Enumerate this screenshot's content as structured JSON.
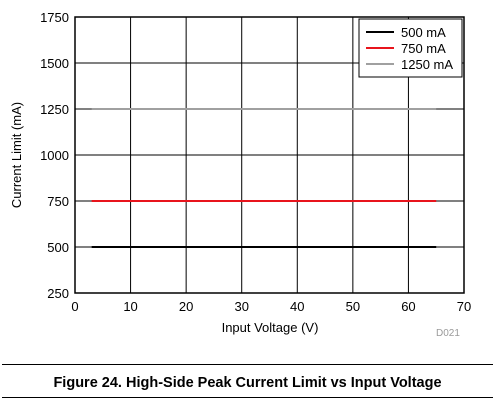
{
  "chart_data": {
    "type": "line",
    "title": "",
    "xlabel": "Input Voltage (V)",
    "ylabel": "Current Limit (mA)",
    "xlim": [
      0,
      70
    ],
    "ylim": [
      250,
      1750
    ],
    "xticks": [
      0,
      10,
      20,
      30,
      40,
      50,
      60,
      70
    ],
    "yticks": [
      250,
      500,
      750,
      1000,
      1250,
      1500,
      1750
    ],
    "grid": true,
    "legend_position": "top-right",
    "series": [
      {
        "name": "500 mA",
        "color": "#000000",
        "x": [
          3,
          65
        ],
        "y": [
          500,
          500
        ]
      },
      {
        "name": "750 mA",
        "color": "#e8141c",
        "x": [
          3,
          65
        ],
        "y": [
          750,
          750
        ]
      },
      {
        "name": "1250 mA",
        "color": "#a0a0a0",
        "x": [
          3,
          65
        ],
        "y": [
          1250,
          1250
        ]
      }
    ]
  },
  "figure_id": "D021",
  "caption": "Figure 24. High-Side Peak Current Limit vs Input Voltage"
}
